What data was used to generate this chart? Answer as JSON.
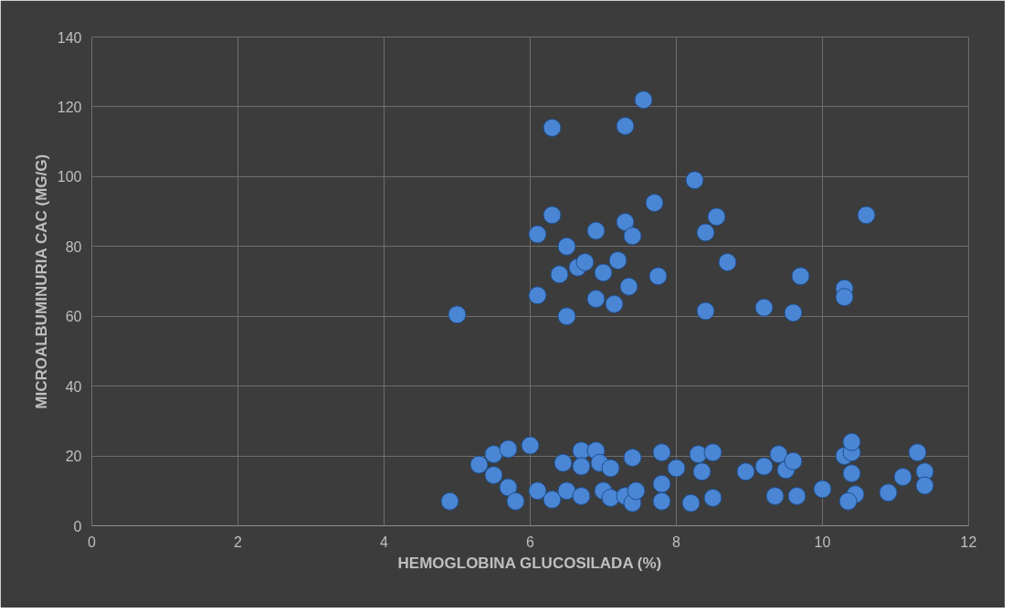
{
  "chart_data": {
    "type": "scatter",
    "xlabel": "HEMOGLOBINA GLUCOSILADA (%)",
    "ylabel": "MICROALBUMINURIA CAC (MG/G)",
    "xlim": [
      0,
      12
    ],
    "xticks": [
      0,
      2,
      4,
      6,
      8,
      10,
      12
    ],
    "ylim": [
      0,
      140
    ],
    "yticks": [
      0,
      20,
      40,
      60,
      80,
      100,
      120,
      140
    ],
    "grid": true,
    "marker": "circle",
    "series": [
      {
        "color": "#4a86d4",
        "x": [
          5.0,
          6.3,
          7.3,
          7.55,
          6.3,
          6.1,
          6.5,
          6.9,
          7.3,
          7.4,
          7.7,
          8.25,
          8.4,
          8.55,
          10.6,
          6.4,
          6.65,
          6.75,
          7.0,
          7.2,
          6.9,
          7.15,
          7.35,
          7.75,
          8.7,
          6.1,
          6.5,
          8.4,
          9.2,
          9.6,
          9.7,
          10.3,
          10.3,
          4.9,
          5.3,
          5.5,
          5.5,
          5.7,
          5.7,
          5.8,
          6.0,
          6.1,
          6.3,
          6.5,
          6.45,
          6.7,
          6.7,
          6.7,
          6.9,
          6.95,
          7.0,
          7.1,
          7.1,
          7.3,
          7.4,
          7.4,
          7.45,
          7.8,
          7.8,
          7.8,
          8.0,
          8.2,
          8.3,
          8.35,
          8.5,
          8.5,
          8.95,
          9.2,
          9.4,
          9.35,
          9.5,
          9.6,
          9.65,
          10.0,
          10.3,
          10.4,
          10.4,
          10.4,
          10.45,
          10.35,
          10.9,
          11.1,
          11.3,
          11.4,
          11.4
        ],
        "values": [
          60.5,
          114,
          114.5,
          122,
          89,
          83.5,
          80,
          84.5,
          87,
          83,
          92.5,
          99,
          84,
          88.5,
          89,
          72,
          74,
          75.5,
          72.5,
          76,
          65,
          63.5,
          68.5,
          71.5,
          75.5,
          66,
          60,
          61.5,
          62.5,
          61,
          71.5,
          68,
          65.5,
          7,
          17.5,
          20.5,
          14.5,
          22,
          11,
          7,
          23,
          10,
          7.5,
          10,
          18,
          21.5,
          17,
          8.5,
          21.5,
          18,
          10,
          16.5,
          8,
          8.5,
          6.5,
          19.5,
          10,
          21,
          12,
          7,
          16.5,
          6.5,
          20.5,
          15.5,
          8,
          21,
          15.5,
          17,
          20.5,
          8.5,
          16,
          18.5,
          8.5,
          10.5,
          20,
          21,
          24,
          15,
          9,
          7,
          9.5,
          14,
          21,
          15.5,
          11.5
        ]
      }
    ]
  }
}
